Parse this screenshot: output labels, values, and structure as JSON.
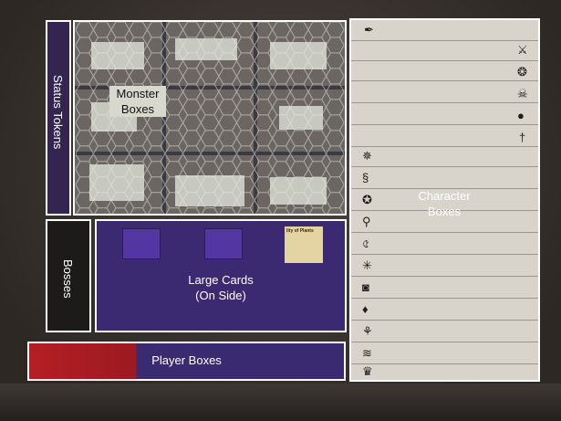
{
  "labels": {
    "status_tokens": "Status Tokens",
    "monster_line1": "Monster",
    "monster_line2": "Boxes",
    "character_line1": "Character",
    "character_line2": "Boxes",
    "bosses": "Bosses",
    "large_cards_line1": "Large Cards",
    "large_cards_line2": "(On Side)",
    "player_boxes": "Player Boxes"
  },
  "card_peek_text": "lity of Plants",
  "char_icons_right": [
    "sword-icon",
    "shield-crest-icon",
    "skull-icon",
    "lock-icon",
    "dagger-icon"
  ],
  "char_icons_left": [
    "gear-star-icon",
    "creature-icon",
    "circle-symbol-icon",
    "staff-icon",
    "claw-icon",
    "snowflake-icon",
    "beast-icon",
    "flame-icon",
    "plant-icon",
    "spikes-icon",
    "crown-icon"
  ],
  "colors": {
    "purple": "#3b2a72",
    "red": "#b41e24",
    "character_paper": "#d9d4cb",
    "outline": "#ffffff"
  }
}
